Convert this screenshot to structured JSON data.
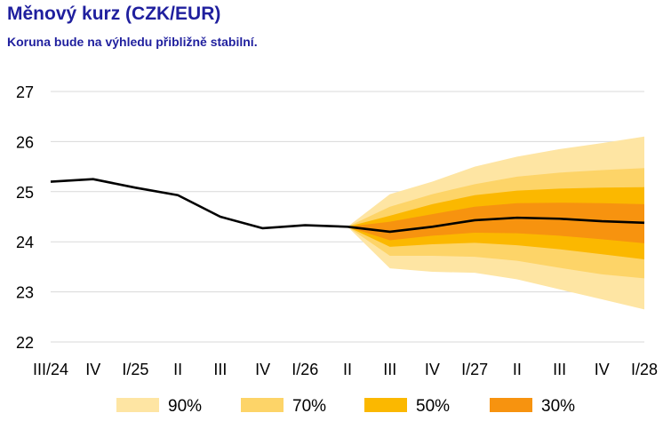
{
  "title": "Měnový kurz (CZK/EUR)",
  "subtitle": "Koruna bude na výhledu přibližně stabilní.",
  "chart_data": {
    "type": "line",
    "title": "Měnový kurz (CZK/EUR)",
    "subtitle": "Koruna bude na výhledu přibližně stabilní.",
    "categories": [
      "III/24",
      "IV",
      "I/25",
      "II",
      "III",
      "IV",
      "I/26",
      "II",
      "III",
      "IV",
      "I/27",
      "II",
      "III",
      "IV",
      "I/28"
    ],
    "ylim": [
      22,
      27
    ],
    "yticks": [
      22,
      23,
      24,
      25,
      26,
      27
    ],
    "grid": true,
    "series": [
      {
        "values": [
          25.2,
          25.25,
          25.08,
          24.93,
          24.5,
          24.27,
          24.33,
          24.3,
          24.2,
          24.3,
          24.43,
          24.48,
          24.46,
          24.41,
          24.38
        ]
      }
    ],
    "fan_start_index": 7,
    "fan_bands": [
      {
        "label": "90%",
        "color": "#fee5a3",
        "upper": [
          24.3,
          24.95,
          25.2,
          25.5,
          25.7,
          25.85,
          25.97,
          26.1
        ],
        "lower": [
          24.3,
          23.47,
          23.4,
          23.38,
          23.25,
          23.05,
          22.85,
          22.65
        ]
      },
      {
        "label": "70%",
        "color": "#fdd468",
        "upper": [
          24.3,
          24.7,
          24.95,
          25.15,
          25.3,
          25.38,
          25.43,
          25.47
        ],
        "lower": [
          24.3,
          23.72,
          23.72,
          23.7,
          23.62,
          23.48,
          23.35,
          23.27
        ]
      },
      {
        "label": "50%",
        "color": "#fbb800",
        "upper": [
          24.3,
          24.52,
          24.75,
          24.93,
          25.02,
          25.06,
          25.08,
          25.09
        ],
        "lower": [
          24.3,
          23.9,
          23.95,
          23.98,
          23.93,
          23.85,
          23.75,
          23.65
        ]
      },
      {
        "label": "30%",
        "color": "#f7930f",
        "upper": [
          24.3,
          24.4,
          24.55,
          24.7,
          24.77,
          24.78,
          24.77,
          24.75
        ],
        "lower": [
          24.3,
          24.03,
          24.12,
          24.18,
          24.17,
          24.12,
          24.05,
          23.97
        ]
      }
    ],
    "legend": [
      "90%",
      "70%",
      "50%",
      "30%"
    ],
    "legend_position": "bottom"
  }
}
